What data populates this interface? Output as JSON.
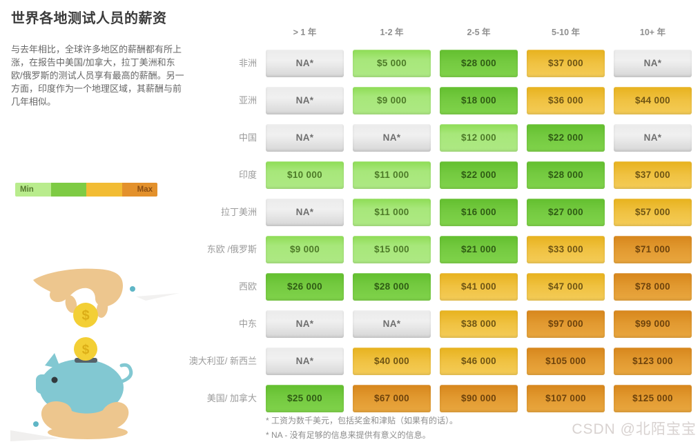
{
  "title": "世界各地测试人员的薪资",
  "description": "与去年相比，全球许多地区的薪酬都有所上涨，在报告中美国/加拿大，拉丁美洲和东欧/俄罗斯的测试人员享有最高的薪酬。另一方面，印度作为一个地理区域，其薪酬与前几年相似。",
  "legend": {
    "segments": [
      {
        "color": "#b9ec8d",
        "label": "Min"
      },
      {
        "color": "#7ecb44",
        "label": ""
      },
      {
        "color": "#f2bc34",
        "label": ""
      },
      {
        "color": "#e3912c",
        "label": "Max"
      }
    ]
  },
  "chart_data": {
    "type": "heatmap",
    "title": "世界各地测试人员的薪资",
    "columns": [
      "> 1 年",
      "1-2 年",
      "2-5 年",
      "5-10 年",
      "10+ 年"
    ],
    "rows": [
      {
        "id": "africa",
        "label": "非洲",
        "cells": [
          {
            "value": "NA*",
            "level": "na"
          },
          {
            "value": "$5 000",
            "level": "light-green"
          },
          {
            "value": "$28 000",
            "level": "green"
          },
          {
            "value": "$37 000",
            "level": "yellow"
          },
          {
            "value": "NA*",
            "level": "na"
          }
        ]
      },
      {
        "id": "asia",
        "label": "亚洲",
        "cells": [
          {
            "value": "NA*",
            "level": "na"
          },
          {
            "value": "$9 000",
            "level": "light-green"
          },
          {
            "value": "$18 000",
            "level": "green"
          },
          {
            "value": "$36 000",
            "level": "yellow"
          },
          {
            "value": "$44 000",
            "level": "yellow"
          }
        ]
      },
      {
        "id": "china",
        "label": "中国",
        "cells": [
          {
            "value": "NA*",
            "level": "na"
          },
          {
            "value": "NA*",
            "level": "na"
          },
          {
            "value": "$12 000",
            "level": "light-green"
          },
          {
            "value": "$22 000",
            "level": "green"
          },
          {
            "value": "NA*",
            "level": "na"
          }
        ]
      },
      {
        "id": "india",
        "label": "印度",
        "cells": [
          {
            "value": "$10 000",
            "level": "light-green"
          },
          {
            "value": "$11 000",
            "level": "light-green"
          },
          {
            "value": "$22 000",
            "level": "green"
          },
          {
            "value": "$28 000",
            "level": "green"
          },
          {
            "value": "$37 000",
            "level": "yellow"
          }
        ]
      },
      {
        "id": "latin-america",
        "label": "拉丁美洲",
        "cells": [
          {
            "value": "NA*",
            "level": "na"
          },
          {
            "value": "$11 000",
            "level": "light-green"
          },
          {
            "value": "$16 000",
            "level": "green"
          },
          {
            "value": "$27 000",
            "level": "green"
          },
          {
            "value": "$57 000",
            "level": "yellow"
          }
        ]
      },
      {
        "id": "eastern-europe-russia",
        "label": "东欧 /俄罗斯",
        "cells": [
          {
            "value": "$9 000",
            "level": "light-green"
          },
          {
            "value": "$15 000",
            "level": "light-green"
          },
          {
            "value": "$21 000",
            "level": "green"
          },
          {
            "value": "$33 000",
            "level": "yellow"
          },
          {
            "value": "$71 000",
            "level": "orange"
          }
        ]
      },
      {
        "id": "western-europe",
        "label": "西欧",
        "cells": [
          {
            "value": "$26 000",
            "level": "green"
          },
          {
            "value": "$28 000",
            "level": "green"
          },
          {
            "value": "$41 000",
            "level": "yellow"
          },
          {
            "value": "$47 000",
            "level": "yellow"
          },
          {
            "value": "$78 000",
            "level": "orange"
          }
        ]
      },
      {
        "id": "middle-east",
        "label": "中东",
        "cells": [
          {
            "value": "NA*",
            "level": "na"
          },
          {
            "value": "NA*",
            "level": "na"
          },
          {
            "value": "$38 000",
            "level": "yellow"
          },
          {
            "value": "$97 000",
            "level": "orange"
          },
          {
            "value": "$99 000",
            "level": "orange"
          }
        ]
      },
      {
        "id": "australia-new-zealand",
        "label": "澳大利亚/ 新西兰",
        "cells": [
          {
            "value": "NA*",
            "level": "na"
          },
          {
            "value": "$40 000",
            "level": "yellow"
          },
          {
            "value": "$46 000",
            "level": "yellow"
          },
          {
            "value": "$105 000",
            "level": "orange"
          },
          {
            "value": "$123 000",
            "level": "orange"
          }
        ]
      },
      {
        "id": "usa-canada",
        "label": "美国/ 加拿大",
        "cells": [
          {
            "value": "$25 000",
            "level": "green"
          },
          {
            "value": "$67 000",
            "level": "orange"
          },
          {
            "value": "$90 000",
            "level": "orange"
          },
          {
            "value": "$107 000",
            "level": "orange"
          },
          {
            "value": "$125 000",
            "level": "orange"
          }
        ]
      }
    ],
    "level_colors": {
      "na": "#dcdcdc",
      "light-green": "#a7e77a",
      "green": "#74ca40",
      "yellow": "#f0c242",
      "orange": "#e29a31"
    }
  },
  "footnotes": [
    "* 工资为数千美元，包括奖金和津贴（如果有的话）。",
    "* NA - 没有足够的信息来提供有意义的信息。"
  ],
  "watermark": "CSDN @北陌宝宝"
}
